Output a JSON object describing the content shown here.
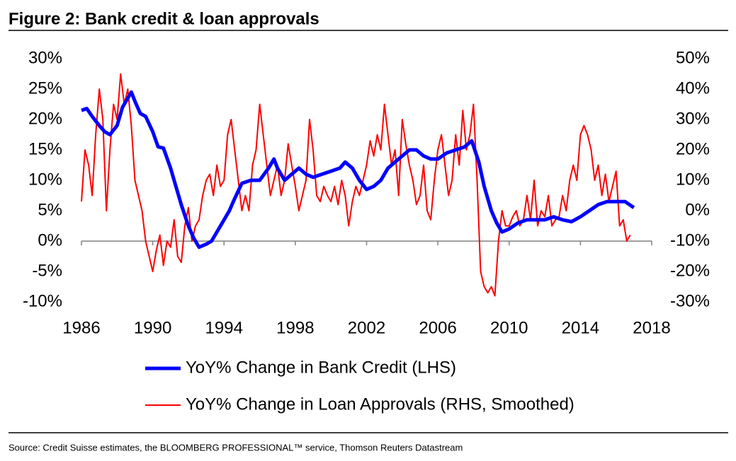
{
  "chart_data": {
    "type": "line",
    "title": "Figure 2: Bank credit & loan approvals",
    "source": "Source: Credit Suisse estimates, the BLOOMBERG PROFESSIONAL™ service, Thomson Reuters Datastream",
    "xlim": [
      1986,
      2018
    ],
    "xticks": [
      1986,
      1990,
      1994,
      1998,
      2002,
      2006,
      2010,
      2014,
      2018
    ],
    "ylim": [
      -10,
      30
    ],
    "yticks": [
      {
        "value": 30,
        "label": "30%"
      },
      {
        "value": 25,
        "label": "25%"
      },
      {
        "value": 20,
        "label": "20%"
      },
      {
        "value": 15,
        "label": "15%"
      },
      {
        "value": 10,
        "label": "10%"
      },
      {
        "value": 5,
        "label": "5%"
      },
      {
        "value": 0,
        "label": "0%"
      },
      {
        "value": -5,
        "label": "-5%"
      },
      {
        "value": -10,
        "label": "-10%"
      }
    ],
    "y2lim": [
      -30,
      50
    ],
    "y2ticks": [
      {
        "value": 50,
        "label": "50%"
      },
      {
        "value": 40,
        "label": "40%"
      },
      {
        "value": 30,
        "label": "30%"
      },
      {
        "value": 20,
        "label": "20%"
      },
      {
        "value": 10,
        "label": "10%"
      },
      {
        "value": 0,
        "label": "0%"
      },
      {
        "value": -10,
        "label": "-10%"
      },
      {
        "value": -20,
        "label": "-20%"
      },
      {
        "value": -30,
        "label": "-30%"
      }
    ],
    "legend": "bottom",
    "series": [
      {
        "name": "YoY% Change in Bank Credit (LHS)",
        "color": "#0000ff",
        "axis": "y",
        "x": [
          1986.0,
          1986.3,
          1986.6,
          1987.0,
          1987.3,
          1987.6,
          1988.0,
          1988.3,
          1988.6,
          1988.8,
          1989.0,
          1989.3,
          1989.6,
          1990.0,
          1990.3,
          1990.6,
          1991.0,
          1991.3,
          1991.6,
          1992.0,
          1992.3,
          1992.6,
          1993.0,
          1993.3,
          1993.6,
          1994.0,
          1994.3,
          1994.6,
          1995.0,
          1995.5,
          1996.0,
          1996.5,
          1996.8,
          1997.0,
          1997.4,
          1997.8,
          1998.2,
          1998.6,
          1999.0,
          1999.5,
          2000.0,
          2000.5,
          2000.8,
          2001.2,
          2001.6,
          2002.0,
          2002.4,
          2002.8,
          2003.2,
          2003.6,
          2004.0,
          2004.4,
          2004.8,
          2005.2,
          2005.6,
          2006.0,
          2006.5,
          2007.0,
          2007.5,
          2007.9,
          2008.3,
          2008.6,
          2009.0,
          2009.3,
          2009.6,
          2010.0,
          2010.5,
          2011.0,
          2011.5,
          2012.0,
          2012.5,
          2013.0,
          2013.5,
          2014.0,
          2014.5,
          2015.0,
          2015.5,
          2016.0,
          2016.5,
          2017.0
        ],
        "values": [
          21.5,
          21.8,
          20.5,
          19,
          18,
          17.5,
          19,
          22,
          23.5,
          24.5,
          23,
          21,
          20.5,
          18,
          15.5,
          15.3,
          12,
          9,
          6,
          2.5,
          0.5,
          -1,
          -0.5,
          0,
          1.5,
          3.5,
          5,
          7,
          9.5,
          10,
          10,
          12,
          13.5,
          12,
          10,
          11,
          12,
          11,
          10.5,
          11,
          11.5,
          12,
          13,
          12,
          10,
          8.5,
          9,
          10,
          12,
          13,
          14,
          15,
          15,
          14,
          13.5,
          13.5,
          14.5,
          15,
          15.5,
          16.5,
          13,
          9,
          5,
          3,
          1.5,
          2,
          3,
          3.5,
          3.5,
          3.5,
          4,
          3.5,
          3.2,
          4,
          5,
          6,
          6.5,
          6.5,
          6.5,
          5.5
        ]
      },
      {
        "name": "YoY% Change in Loan Approvals (RHS, Smoothed)",
        "color": "#ff0000",
        "axis": "y2",
        "x": [
          1986.0,
          1986.2,
          1986.4,
          1986.6,
          1986.8,
          1987.0,
          1987.2,
          1987.4,
          1987.6,
          1987.8,
          1988.0,
          1988.2,
          1988.4,
          1988.6,
          1988.8,
          1989.0,
          1989.2,
          1989.4,
          1989.6,
          1989.8,
          1990.0,
          1990.2,
          1990.4,
          1990.6,
          1990.8,
          1991.0,
          1991.2,
          1991.4,
          1991.6,
          1991.8,
          1992.0,
          1992.2,
          1992.4,
          1992.6,
          1992.8,
          1993.0,
          1993.2,
          1993.4,
          1993.6,
          1993.8,
          1994.0,
          1994.2,
          1994.4,
          1994.6,
          1994.8,
          1995.0,
          1995.2,
          1995.4,
          1995.6,
          1995.8,
          1996.0,
          1996.2,
          1996.4,
          1996.6,
          1996.8,
          1997.0,
          1997.2,
          1997.4,
          1997.6,
          1997.8,
          1998.0,
          1998.2,
          1998.4,
          1998.6,
          1998.8,
          1999.0,
          1999.2,
          1999.4,
          1999.6,
          1999.8,
          2000.0,
          2000.2,
          2000.4,
          2000.6,
          2000.8,
          2001.0,
          2001.2,
          2001.4,
          2001.6,
          2001.8,
          2002.0,
          2002.2,
          2002.4,
          2002.6,
          2002.8,
          2003.0,
          2003.2,
          2003.4,
          2003.6,
          2003.8,
          2004.0,
          2004.2,
          2004.4,
          2004.6,
          2004.8,
          2005.0,
          2005.2,
          2005.4,
          2005.6,
          2005.8,
          2006.0,
          2006.2,
          2006.4,
          2006.6,
          2006.8,
          2007.0,
          2007.2,
          2007.4,
          2007.6,
          2007.8,
          2008.0,
          2008.2,
          2008.4,
          2008.6,
          2008.8,
          2009.0,
          2009.2,
          2009.4,
          2009.6,
          2009.8,
          2010.0,
          2010.2,
          2010.4,
          2010.6,
          2010.8,
          2011.0,
          2011.2,
          2011.4,
          2011.6,
          2011.8,
          2012.0,
          2012.2,
          2012.4,
          2012.6,
          2012.8,
          2013.0,
          2013.2,
          2013.4,
          2013.6,
          2013.8,
          2014.0,
          2014.2,
          2014.4,
          2014.6,
          2014.8,
          2015.0,
          2015.2,
          2015.4,
          2015.6,
          2015.8,
          2016.0,
          2016.2,
          2016.4,
          2016.6,
          2016.8
        ],
        "values": [
          3,
          20,
          15,
          5,
          25,
          40,
          30,
          0,
          20,
          35,
          30,
          45,
          35,
          40,
          28,
          10,
          5,
          0,
          -10,
          -15,
          -20,
          -13,
          -8,
          -18,
          -10,
          -12,
          -3,
          -15,
          -17,
          -5,
          1,
          -10,
          -5,
          -3,
          5,
          10,
          12,
          5,
          15,
          8,
          10,
          25,
          30,
          20,
          10,
          0,
          5,
          0,
          15,
          20,
          35,
          25,
          15,
          5,
          10,
          15,
          5,
          10,
          22,
          15,
          8,
          0,
          5,
          10,
          30,
          20,
          5,
          3,
          8,
          5,
          3,
          8,
          2,
          10,
          5,
          -5,
          3,
          8,
          5,
          10,
          15,
          23,
          18,
          25,
          20,
          35,
          25,
          15,
          20,
          5,
          30,
          22,
          15,
          10,
          2,
          5,
          15,
          0,
          -3,
          10,
          20,
          25,
          15,
          5,
          10,
          25,
          15,
          33,
          20,
          25,
          35,
          10,
          -20,
          -25,
          -27,
          -25,
          -28,
          -10,
          0,
          -5,
          -5,
          -2,
          0,
          -5,
          -3,
          5,
          -3,
          10,
          -5,
          0,
          -2,
          5,
          -5,
          -3,
          -2,
          5,
          0,
          10,
          15,
          10,
          25,
          28,
          25,
          20,
          10,
          15,
          5,
          12,
          3,
          8,
          13,
          -5,
          -3,
          -10,
          -8
        ]
      }
    ]
  }
}
